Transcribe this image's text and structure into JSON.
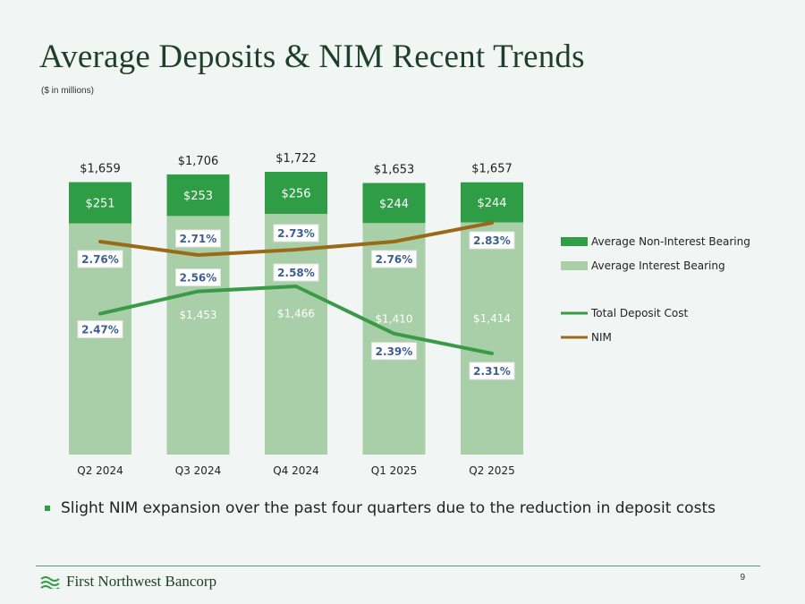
{
  "slide": {
    "title": "Average Deposits & NIM Recent Trends",
    "subtitle": "($ in millions)",
    "bullet": "Slight NIM expansion over the past four quarters due to the reduction in deposit costs",
    "company": "First Northwest Bancorp",
    "page_number": "9"
  },
  "colors": {
    "non_interest": "#2e9d46",
    "interest": "#a8cfa8",
    "deposit_cost": "#3a9a48",
    "nim": "#9a6a18"
  },
  "chart_data": {
    "type": "bar",
    "categories": [
      "Q2 2024",
      "Q3 2024",
      "Q4 2024",
      "Q1 2025",
      "Q2 2025"
    ],
    "series": [
      {
        "name": "Average Interest Bearing",
        "values": [
          1408,
          1453,
          1466,
          1410,
          1414
        ],
        "labels": [
          "",
          "$1,453",
          "$1,466",
          "$1,410",
          "$1,414"
        ]
      },
      {
        "name": "Average Non-Interest Bearing",
        "values": [
          251,
          253,
          256,
          244,
          244
        ],
        "labels": [
          "$251",
          "$253",
          "$256",
          "$244",
          "$244"
        ]
      }
    ],
    "totals": [
      "$1,659",
      "$1,706",
      "$1,722",
      "$1,653",
      "$1,657"
    ],
    "lines": [
      {
        "name": "Total Deposit Cost",
        "values": [
          2.47,
          2.56,
          2.58,
          2.39,
          2.31
        ],
        "labels": [
          "2.47%",
          "2.56%",
          "2.58%",
          "2.39%",
          "2.31%"
        ]
      },
      {
        "name": "NIM",
        "values": [
          2.76,
          2.71,
          2.73,
          2.76,
          2.83
        ],
        "labels": [
          "2.76%",
          "2.71%",
          "2.73%",
          "2.76%",
          "2.83%"
        ]
      }
    ],
    "legend": [
      "Average Non-Interest Bearing",
      "Average Interest Bearing",
      "Total Deposit Cost",
      "NIM"
    ],
    "ylim": [
      0,
      1722
    ]
  }
}
